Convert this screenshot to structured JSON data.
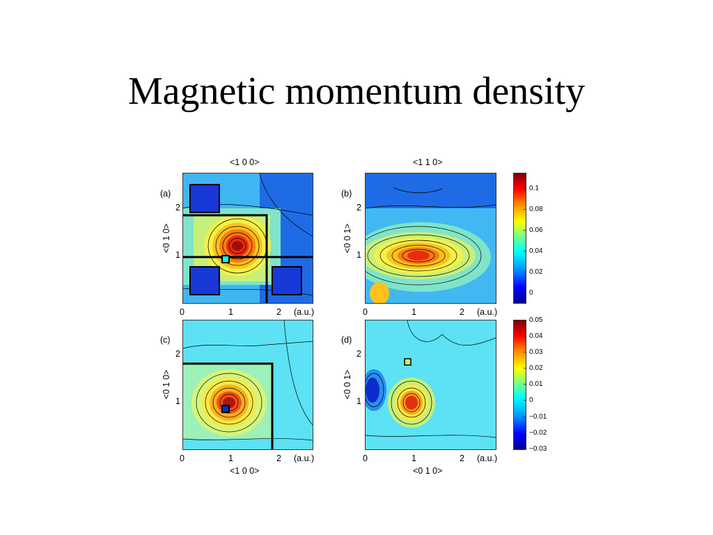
{
  "title": "Magnetic momentum density",
  "figure": {
    "top_axis_left": "<1 0 0>",
    "top_axis_right": "<1 1 0>",
    "bottom_axis_left": "<1 0 0>",
    "bottom_axis_right": "<0 1 0>",
    "unit": "(a.u.)",
    "panels": [
      {
        "label": "(a)",
        "ylabel": "<0 1 0>"
      },
      {
        "label": "(b)",
        "ylabel": "<0 0 1>"
      },
      {
        "label": "(c)",
        "ylabel": "<0 1 0>"
      },
      {
        "label": "(d)",
        "ylabel": "<0 0 1>"
      }
    ],
    "x_ticks": [
      "0",
      "1",
      "2"
    ],
    "y_ticks": [
      "1",
      "2"
    ],
    "colorbar_top_ticks": [
      "0.1",
      "0.08",
      "0.06",
      "0.04",
      "0.02",
      "0"
    ],
    "colorbar_bottom_ticks": [
      "0.05",
      "0.04",
      "0.03",
      "0.02",
      "0.01",
      "0",
      "−0.01",
      "−0.02",
      "−0.03"
    ],
    "colormap": [
      "#00008f",
      "#0000ff",
      "#00a0ff",
      "#00ffff",
      "#80ff80",
      "#ffff00",
      "#ff8000",
      "#ff0000",
      "#800000"
    ]
  }
}
